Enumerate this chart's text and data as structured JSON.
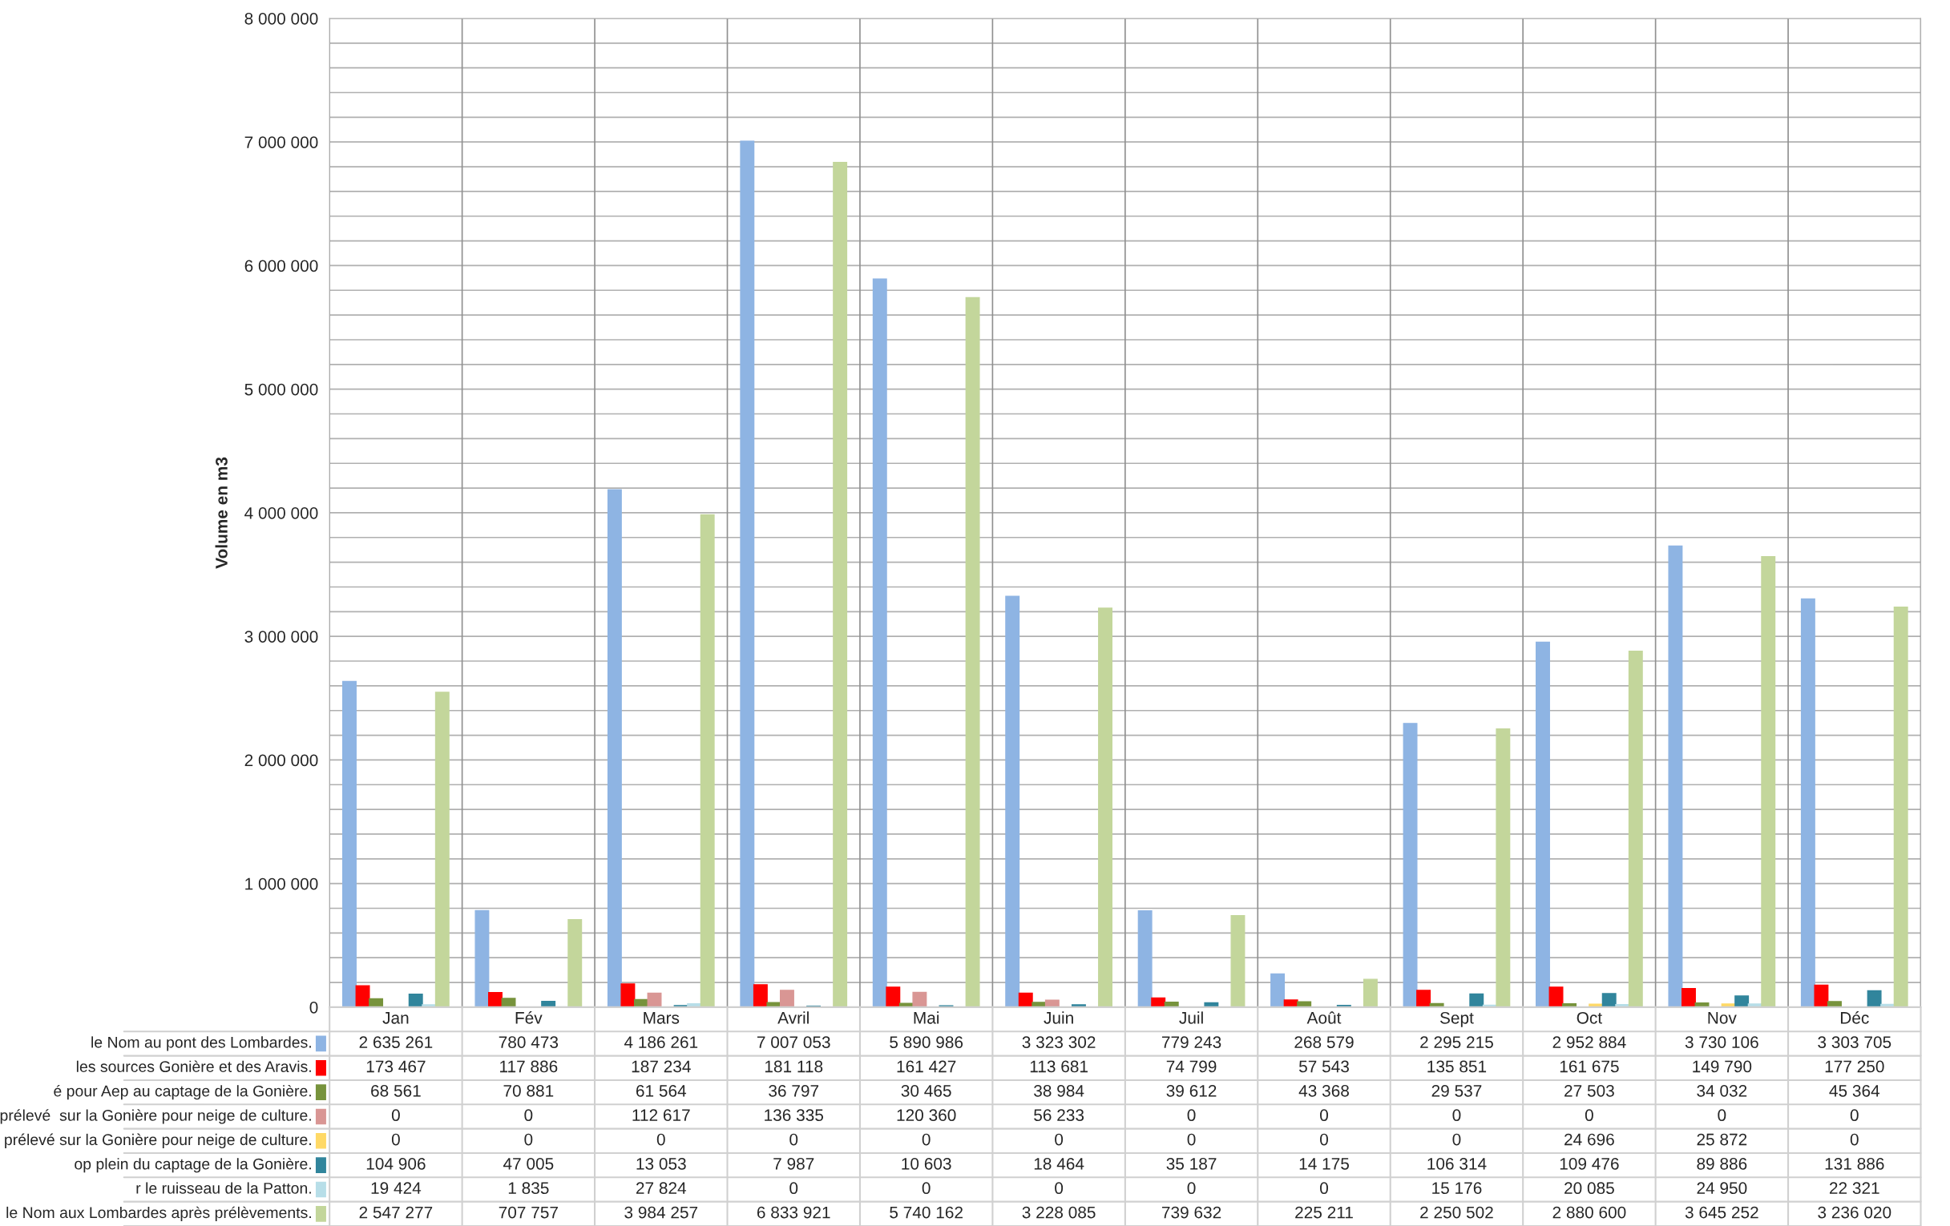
{
  "chart_data": {
    "type": "bar",
    "ylabel": "Volume en m3",
    "categories": [
      "Jan",
      "Fév",
      "Mars",
      "Avril",
      "Mai",
      "Juin",
      "Juil",
      "Août",
      "Sept",
      "Oct",
      "Nov",
      "Déc"
    ],
    "series": [
      {
        "name": "le Nom au pont des Lombardes.",
        "color": "#8eb4e3",
        "values": [
          2635261,
          780473,
          4186261,
          7007053,
          5890986,
          3323302,
          779243,
          268579,
          2295215,
          2952884,
          3730106,
          3303705
        ]
      },
      {
        "name": "les sources Gonière et des Aravis.",
        "color": "#ff0000",
        "values": [
          173467,
          117886,
          187234,
          181118,
          161427,
          113681,
          74799,
          57543,
          135851,
          161675,
          149790,
          177250
        ]
      },
      {
        "name": "é pour Aep au captage de la Gonière.",
        "color": "#77933c",
        "values": [
          68561,
          70881,
          61564,
          36797,
          30465,
          38984,
          39612,
          43368,
          29537,
          27503,
          34032,
          45364
        ]
      },
      {
        "name": "prélevé  sur la Gonière pour neige de culture.",
        "color": "#d99694",
        "values": [
          0,
          0,
          112617,
          136335,
          120360,
          56233,
          0,
          0,
          0,
          0,
          0,
          0
        ]
      },
      {
        "name": "prélevé sur la Gonière pour neige de culture.",
        "color": "#ffd966",
        "values": [
          0,
          0,
          0,
          0,
          0,
          0,
          0,
          0,
          0,
          24696,
          25872,
          0
        ]
      },
      {
        "name": "op plein du captage de la Gonière.",
        "color": "#31859c",
        "values": [
          104906,
          47005,
          13053,
          7987,
          10603,
          18464,
          35187,
          14175,
          106314,
          109476,
          89886,
          131886
        ]
      },
      {
        "name": "r le ruisseau de la Patton.",
        "color": "#b7dee8",
        "values": [
          19424,
          1835,
          27824,
          0,
          0,
          0,
          0,
          0,
          15176,
          20085,
          24950,
          22321
        ]
      },
      {
        "name": "le Nom aux Lombardes après prélèvements.",
        "color": "#c3d69b",
        "values": [
          2547277,
          707757,
          3984257,
          6833921,
          5740162,
          3228085,
          739632,
          225211,
          2250502,
          2880600,
          3645252,
          3236020
        ]
      }
    ],
    "ylim": [
      0,
      8000000
    ],
    "yticks": [
      0,
      {
        "value": 200000,
        "label": null
      },
      {
        "value": 400000,
        "label": null
      },
      {
        "value": 600000,
        "label": null
      },
      {
        "value": 800000,
        "label": null
      },
      {
        "value": 1000000,
        "label": "1 000 000"
      },
      {
        "value": 1200000,
        "label": null
      },
      {
        "value": 1400000,
        "label": null
      },
      {
        "value": 1600000,
        "label": null
      },
      {
        "value": 1800000,
        "label": null
      },
      {
        "value": 2000000,
        "label": "2 000 000"
      },
      {
        "value": 2200000,
        "label": null
      },
      {
        "value": 2400000,
        "label": null
      },
      {
        "value": 2600000,
        "label": null
      },
      {
        "value": 2800000,
        "label": null
      },
      {
        "value": 3000000,
        "label": "3 000 000"
      },
      {
        "value": 3200000,
        "label": null
      },
      {
        "value": 3400000,
        "label": null
      },
      {
        "value": 3600000,
        "label": null
      },
      {
        "value": 3800000,
        "label": null
      },
      {
        "value": 4000000,
        "label": "4 000 000"
      },
      {
        "value": 4200000,
        "label": null
      },
      {
        "value": 4400000,
        "label": null
      },
      {
        "value": 4600000,
        "label": null
      },
      {
        "value": 4800000,
        "label": null
      },
      {
        "value": 5000000,
        "label": "5 000 000"
      },
      {
        "value": 5200000,
        "label": null
      },
      {
        "value": 5400000,
        "label": null
      },
      {
        "value": 5600000,
        "label": null
      },
      {
        "value": 5800000,
        "label": null
      },
      {
        "value": 6000000,
        "label": "6 000 000"
      },
      {
        "value": 6200000,
        "label": null
      },
      {
        "value": 6400000,
        "label": null
      },
      {
        "value": 6600000,
        "label": null
      },
      {
        "value": 6800000,
        "label": null
      },
      {
        "value": 7000000,
        "label": "7 000 000"
      },
      {
        "value": 7200000,
        "label": null
      },
      {
        "value": 7400000,
        "label": null
      },
      {
        "value": 7600000,
        "label": null
      },
      {
        "value": 7800000,
        "label": null
      },
      {
        "value": 8000000,
        "label": "8 000 000"
      }
    ],
    "grid": true,
    "legend": "bottom",
    "data_labels": true
  }
}
